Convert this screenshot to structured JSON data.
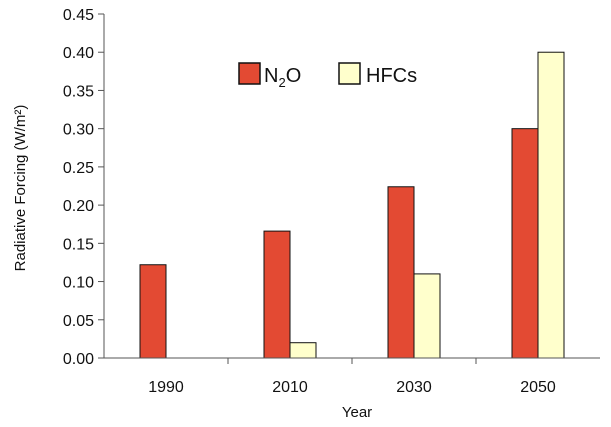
{
  "chart_data": {
    "type": "bar",
    "categories": [
      "1990",
      "2010",
      "2030",
      "2050"
    ],
    "series": [
      {
        "name": "N2O",
        "values": [
          0.122,
          0.166,
          0.224,
          0.3
        ],
        "color": "#e34a33"
      },
      {
        "name": "HFCs",
        "values": [
          0.0,
          0.02,
          0.11,
          0.4
        ],
        "color": "#ffffcc"
      }
    ],
    "xlabel": "Year",
    "ylabel": "Radiative Forcing (W/m²)",
    "ylim": [
      0,
      0.45
    ],
    "yticks": [
      "0.00",
      "0.05",
      "0.10",
      "0.15",
      "0.20",
      "0.25",
      "0.30",
      "0.35",
      "0.40",
      "0.45"
    ],
    "grid": false,
    "legend_position": "top-center",
    "legend": {
      "n2o_main": "N",
      "n2o_sub": "2",
      "n2o_tail": "O",
      "hfc_label": "HFCs"
    }
  }
}
